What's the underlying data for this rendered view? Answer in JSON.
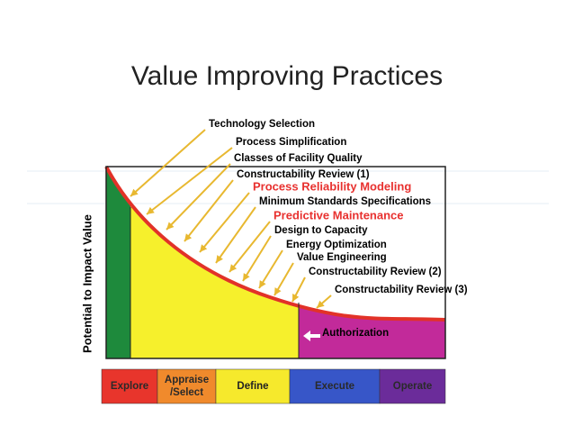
{
  "title": "Value Improving Practices",
  "y_axis_label": "Potential to Impact Value",
  "practices": [
    {
      "label": "Technology Selection",
      "color": "#000000"
    },
    {
      "label": "Process Simplification",
      "color": "#000000"
    },
    {
      "label": "Classes of Facility Quality",
      "color": "#000000"
    },
    {
      "label": "Constructability Review (1)",
      "color": "#000000"
    },
    {
      "label": "Process Reliability Modeling",
      "color": "#e8312f"
    },
    {
      "label": "Minimum Standards Specifications",
      "color": "#000000"
    },
    {
      "label": "Predictive Maintenance",
      "color": "#e8312f"
    },
    {
      "label": "Design to Capacity",
      "color": "#000000"
    },
    {
      "label": "Energy Optimization",
      "color": "#000000"
    },
    {
      "label": "Value Engineering",
      "color": "#000000"
    },
    {
      "label": "Constructability Review (2)",
      "color": "#000000"
    },
    {
      "label": "Constructability Review (3)",
      "color": "#000000"
    }
  ],
  "annotation": "Authorization",
  "phases": [
    {
      "label": "Explore",
      "color": "#e8352c"
    },
    {
      "label": "Appraise /Select",
      "color": "#f08a2c"
    },
    {
      "label": "Define",
      "color": "#f6e92c"
    },
    {
      "label": "Execute",
      "color": "#3756c8"
    },
    {
      "label": "Operate",
      "color": "#6b2c9a"
    }
  ]
}
